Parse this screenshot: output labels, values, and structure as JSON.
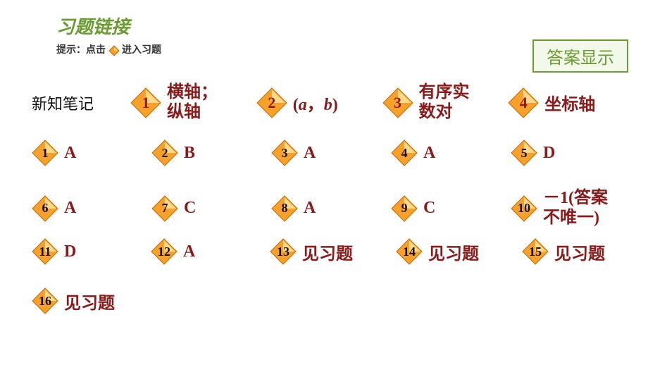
{
  "title": "习题链接",
  "hint_prefix": "提示：点击",
  "hint_suffix": "进入习题",
  "answer_button": "答案显示",
  "section_label": "新知笔记",
  "colors": {
    "title": "#6b9c2f",
    "answer_border": "#6b9c2f",
    "answer_bg": "#f3f9ea",
    "answer_text_dark": "#8b1a1a",
    "row1_num": "#8b1a1a",
    "row_other_num": "#111111",
    "diamond_fill": "#f7a02a",
    "diamond_stroke": "#c96a00",
    "diamond_highlight": "#ffe39a"
  },
  "sizes": {
    "row1_diamond": 44,
    "row_other_diamond": 38,
    "small_diamond": 16,
    "row1_num_font": 22,
    "row_other_num_font": 18,
    "row1_ans_font": 24,
    "row_other_ans_font": 24
  },
  "row1": [
    {
      "n": "1",
      "ans": "横轴；<br>纵轴",
      "two_line": true
    },
    {
      "n": "2",
      "ans": "(<span class='lat'>a</span>，<span class='lat'>b</span>)"
    },
    {
      "n": "3",
      "ans": "有序实<br>数对",
      "two_line": true
    },
    {
      "n": "4",
      "ans": "坐标轴"
    }
  ],
  "row2": [
    {
      "n": "1",
      "ans": "A"
    },
    {
      "n": "2",
      "ans": "B"
    },
    {
      "n": "3",
      "ans": "A"
    },
    {
      "n": "4",
      "ans": "A"
    },
    {
      "n": "5",
      "ans": "D"
    }
  ],
  "row3": [
    {
      "n": "6",
      "ans": "A"
    },
    {
      "n": "7",
      "ans": "C"
    },
    {
      "n": "8",
      "ans": "A"
    },
    {
      "n": "9",
      "ans": "C"
    },
    {
      "n": "10",
      "ans": "－1(答案<br>不唯一)",
      "two_line": true
    }
  ],
  "row4": [
    {
      "n": "11",
      "ans": "D"
    },
    {
      "n": "12",
      "ans": "A"
    },
    {
      "n": "13",
      "ans": "见习题"
    },
    {
      "n": "14",
      "ans": "见习题"
    },
    {
      "n": "15",
      "ans": "见习题"
    }
  ],
  "row5": [
    {
      "n": "16",
      "ans": "见习题"
    }
  ]
}
